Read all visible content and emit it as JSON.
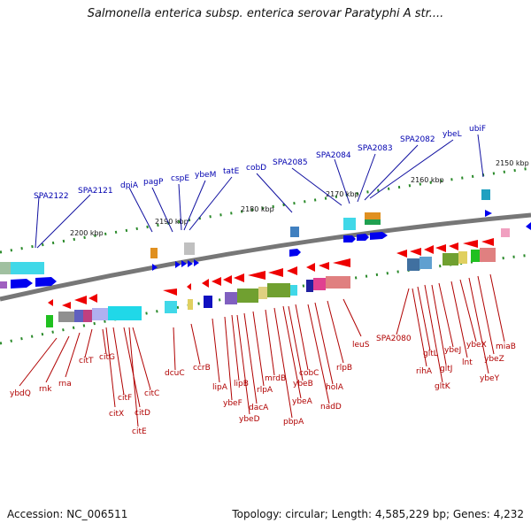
{
  "title": "Salmonella enterica subsp. enterica serovar Paratyphi A str....",
  "footer": {
    "accession": "Accession: NC_006511",
    "topology": "Topology: circular; Length: 4,585,229 bp; Genes: 4,232"
  },
  "kbp_labels": [
    "2150 kbp",
    "2160 kbp",
    "2170 kbp",
    "2180 kbp",
    "2190 kbp",
    "2200 kbp"
  ],
  "top_labels": [
    "SPA2122",
    "SPA2121",
    "dpiA",
    "pagP",
    "cspE",
    "ybeM",
    "tatE",
    "cobD",
    "SPA2085",
    "SPA2084",
    "SPA2083",
    "SPA2082",
    "ybeL",
    "ubiF"
  ],
  "bottom_labels": [
    "ybdQ",
    "rnk",
    "rna",
    "citT",
    "citG",
    "citX",
    "citF",
    "citD",
    "citE",
    "citC",
    "dcuC",
    "ccrB",
    "lipA",
    "ybeF",
    "lipB",
    "ybeD",
    "dacA",
    "rlpA",
    "mrdB",
    "pbpA",
    "ybeA",
    "ybeB",
    "cobC",
    "holA",
    "nadD",
    "rlpB",
    "leuS",
    "SPA2080",
    "rihA",
    "gltL",
    "gltK",
    "gltJ",
    "ybeJ",
    "lnt",
    "ybeX",
    "ybeY",
    "ybeZ",
    "miaB"
  ],
  "colors": {
    "forward_gene": "#0000ee",
    "reverse_gene": "#ee0000",
    "top_label": "#0000b0",
    "bottom_label": "#b00000"
  }
}
